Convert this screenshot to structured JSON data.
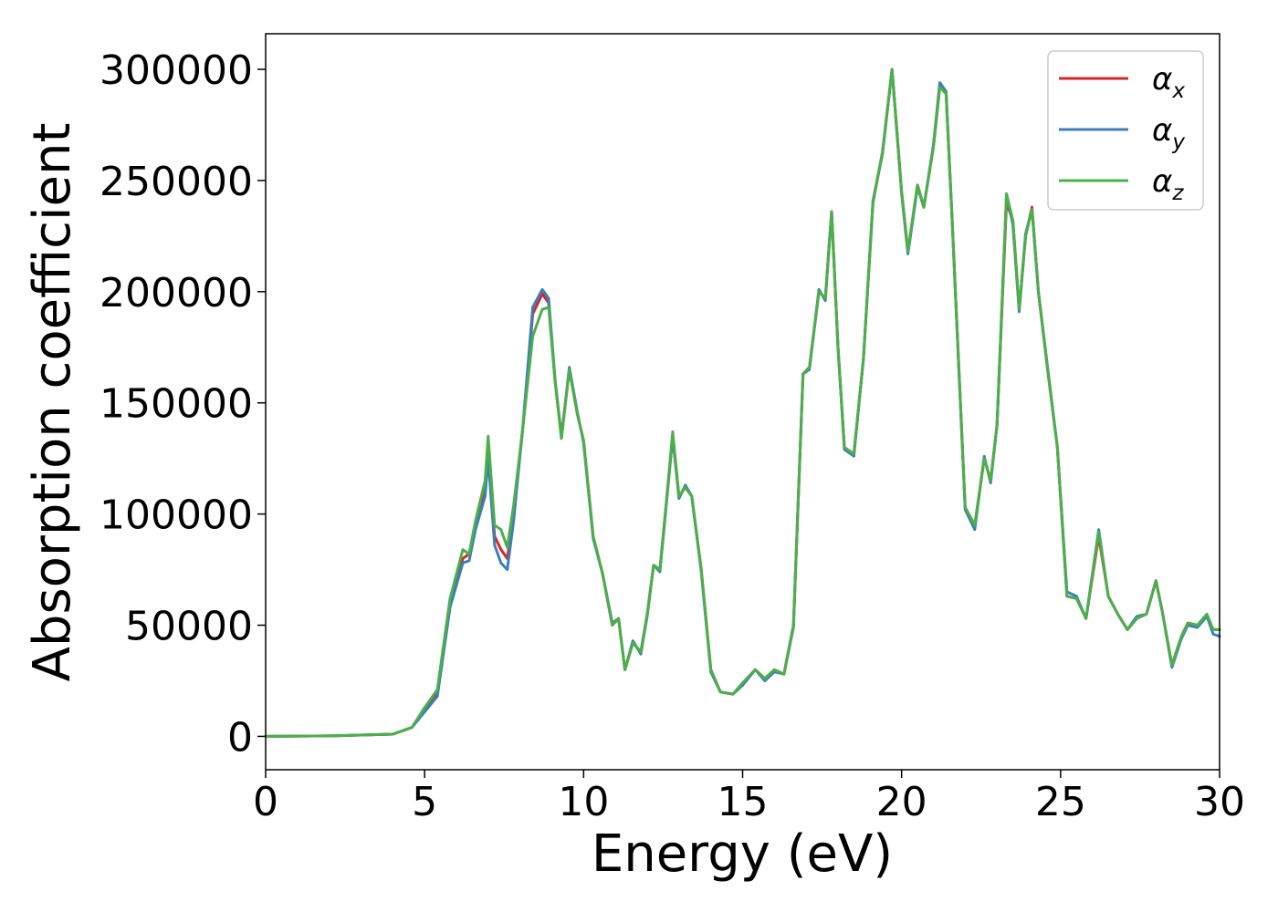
{
  "chart_data": {
    "type": "line",
    "xlabel": "Energy (eV)",
    "ylabel": "Absorption coefficient",
    "xlim": [
      0,
      30
    ],
    "ylim": [
      -15000,
      316000
    ],
    "xticks": [
      0,
      5,
      10,
      15,
      20,
      25,
      30
    ],
    "yticks": [
      0,
      50000,
      100000,
      150000,
      200000,
      250000,
      300000
    ],
    "grid": false,
    "legend_position": "top-right",
    "x": [
      0,
      2,
      4,
      4.6,
      5,
      5.4,
      5.8,
      6.2,
      6.4,
      6.6,
      6.9,
      7.0,
      7.2,
      7.4,
      7.6,
      7.8,
      8.1,
      8.4,
      8.7,
      8.9,
      9.1,
      9.3,
      9.55,
      9.8,
      10.0,
      10.3,
      10.6,
      10.9,
      11.1,
      11.3,
      11.55,
      11.8,
      12.0,
      12.2,
      12.4,
      12.6,
      12.8,
      13.0,
      13.2,
      13.4,
      13.7,
      14.0,
      14.3,
      14.7,
      15.0,
      15.4,
      15.7,
      16.0,
      16.3,
      16.6,
      16.9,
      17.1,
      17.4,
      17.6,
      17.8,
      18.0,
      18.2,
      18.5,
      18.8,
      19.1,
      19.4,
      19.7,
      20.0,
      20.2,
      20.5,
      20.7,
      21.0,
      21.2,
      21.4,
      21.6,
      22.0,
      22.3,
      22.6,
      22.8,
      23.0,
      23.3,
      23.5,
      23.7,
      23.9,
      24.1,
      24.3,
      24.6,
      24.9,
      25.2,
      25.5,
      25.8,
      26.2,
      26.5,
      26.8,
      27.1,
      27.4,
      27.7,
      28.0,
      28.2,
      28.5,
      28.8,
      29.0,
      29.3,
      29.6,
      29.8,
      30.0
    ],
    "series": [
      {
        "name": "α_x",
        "color": "#d62728",
        "values": [
          0,
          200,
          1000,
          4000,
          12000,
          20000,
          60000,
          80000,
          82000,
          95000,
          110000,
          127000,
          90000,
          84000,
          80000,
          100000,
          140000,
          190000,
          199000,
          195000,
          160000,
          135000,
          165000,
          145000,
          133000,
          90000,
          73000,
          50000,
          53000,
          30000,
          42000,
          38000,
          55000,
          77000,
          75000,
          105000,
          135000,
          108000,
          112000,
          108000,
          75000,
          30000,
          20000,
          19000,
          24000,
          30000,
          26000,
          30000,
          28000,
          50000,
          163000,
          166000,
          200000,
          197000,
          236000,
          175000,
          130000,
          127000,
          170000,
          240000,
          263000,
          300000,
          245000,
          218000,
          248000,
          238000,
          265000,
          292000,
          289000,
          229000,
          103000,
          95000,
          125000,
          115000,
          140000,
          240000,
          232000,
          192000,
          225000,
          238000,
          200000,
          164000,
          130000,
          63000,
          62000,
          53000,
          90000,
          63000,
          55000,
          48000,
          53000,
          55000,
          70000,
          56000,
          32000,
          45000,
          51000,
          50000,
          54000,
          48000,
          48000
        ]
      },
      {
        "name": "α_y",
        "color": "#3b7fb8",
        "values": [
          0,
          200,
          1000,
          4000,
          11000,
          18000,
          58000,
          78000,
          79000,
          93000,
          108000,
          125000,
          86000,
          78000,
          75000,
          97000,
          141000,
          193000,
          201000,
          197000,
          161000,
          134000,
          166000,
          146000,
          132000,
          89000,
          73000,
          51000,
          53000,
          30000,
          43000,
          37000,
          54000,
          77000,
          74000,
          104000,
          135000,
          107000,
          113000,
          108000,
          74000,
          29000,
          20000,
          19000,
          23000,
          30000,
          25000,
          29000,
          28000,
          49000,
          163000,
          165000,
          201000,
          196000,
          236000,
          175000,
          129000,
          126000,
          170000,
          241000,
          262000,
          300000,
          244000,
          217000,
          247000,
          238000,
          266000,
          294000,
          290000,
          229000,
          102000,
          93000,
          126000,
          114000,
          140000,
          244000,
          230000,
          191000,
          226000,
          237000,
          200000,
          165000,
          130000,
          65000,
          63000,
          53000,
          93000,
          63000,
          55000,
          48000,
          54000,
          55000,
          70000,
          56000,
          31000,
          44000,
          50000,
          49000,
          54000,
          46000,
          45000
        ]
      },
      {
        "name": "α_z",
        "color": "#4daf4a",
        "values": [
          0,
          200,
          1000,
          4000,
          13000,
          21000,
          62000,
          84000,
          82000,
          97000,
          115000,
          135000,
          95000,
          93000,
          85000,
          104000,
          140000,
          180000,
          192000,
          193000,
          160000,
          134000,
          165000,
          145000,
          133000,
          90000,
          73000,
          50000,
          53000,
          30000,
          42000,
          38000,
          55000,
          77000,
          75000,
          105000,
          137000,
          108000,
          112000,
          108000,
          75000,
          30000,
          20000,
          19000,
          24000,
          30000,
          26000,
          30000,
          28000,
          50000,
          163000,
          166000,
          200000,
          197000,
          236000,
          175000,
          130000,
          127000,
          170000,
          240000,
          263000,
          300000,
          245000,
          218000,
          248000,
          238000,
          265000,
          292000,
          289000,
          229000,
          103000,
          95000,
          125000,
          115000,
          140000,
          244000,
          232000,
          192000,
          225000,
          237000,
          200000,
          164000,
          130000,
          63000,
          62000,
          53000,
          92000,
          63000,
          55000,
          48000,
          53000,
          55000,
          70000,
          56000,
          32000,
          45000,
          51000,
          50000,
          55000,
          48000,
          48000
        ]
      }
    ]
  }
}
